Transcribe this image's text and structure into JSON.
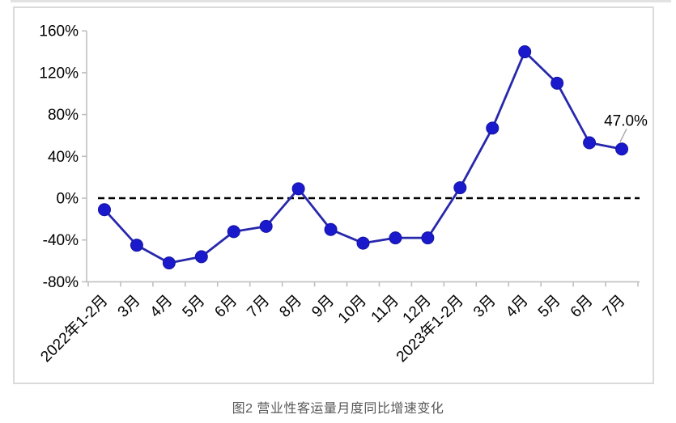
{
  "window": {
    "top_divider_color": "#e2e2e2"
  },
  "figure_caption": "图2  营业性客运量月度同比增速变化",
  "chart_data": {
    "type": "line",
    "title": "",
    "xlabel": "",
    "ylabel": "",
    "categories": [
      "2022年1-2月",
      "3月",
      "4月",
      "5月",
      "6月",
      "7月",
      "8月",
      "9月",
      "10月",
      "11月",
      "12月",
      "2023年1-2月",
      "3月",
      "4月",
      "5月",
      "6月",
      "7月"
    ],
    "values": [
      -11,
      -45,
      -62,
      -56,
      -32,
      -27,
      9,
      -30,
      -43,
      -38,
      -38,
      10,
      67,
      140,
      110,
      53,
      47
    ],
    "ylim": [
      -80,
      160
    ],
    "yticks": [
      160,
      120,
      80,
      40,
      0,
      -40,
      -80
    ],
    "ytick_suffix": "%",
    "grid": false,
    "legend_position": "none",
    "zero_reference_line": {
      "value": 0,
      "style": "dashed",
      "color": "#000000"
    },
    "annotation": {
      "text": "47.0%",
      "category": "7月",
      "point_index": 16
    },
    "colors": {
      "line": "#2828ac",
      "marker": "#1a1acc",
      "marker_stroke": "#1414a6",
      "axis": "#bfbfbf",
      "tick_label_text": "#000000",
      "annotation_text": "#000000",
      "annotation_leader": "#a6a6a6",
      "caption_text": "#595959"
    }
  }
}
